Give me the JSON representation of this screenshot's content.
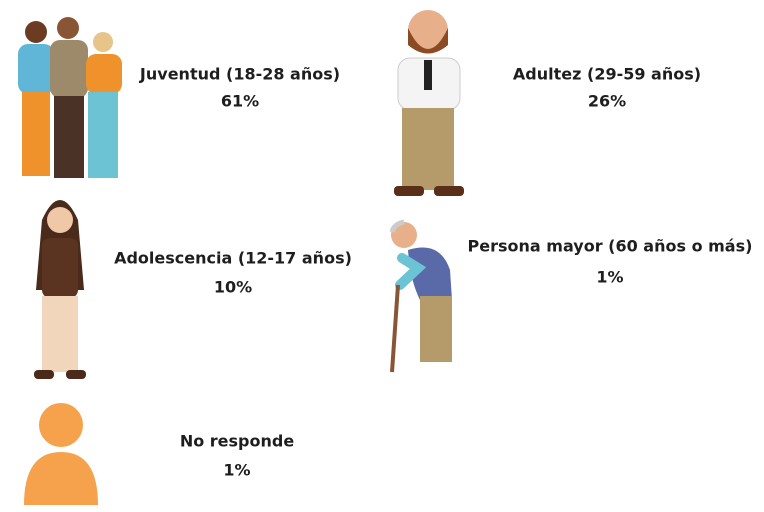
{
  "items": [
    {
      "label": "Juventud (18-28 años)",
      "percent": "61%"
    },
    {
      "label": "Adultez (29-59 años)",
      "percent": "26%"
    },
    {
      "label": "Adolescencia (12-17 años)",
      "percent": "10%"
    },
    {
      "label": "Persona mayor (60 años o más)",
      "percent": "1%"
    },
    {
      "label": "No responde",
      "percent": "1%"
    }
  ]
}
